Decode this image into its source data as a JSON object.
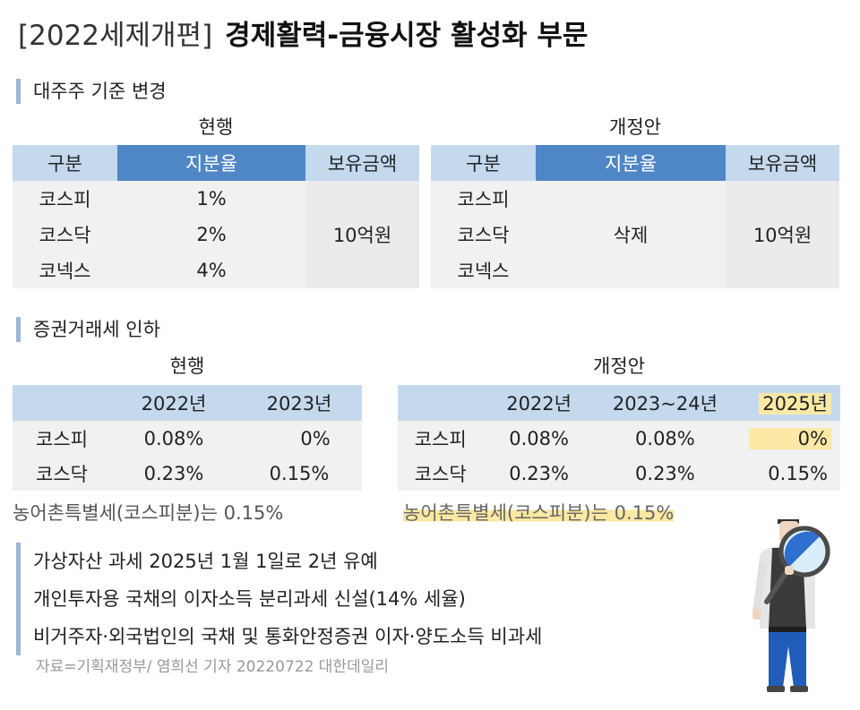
{
  "title": {
    "prefix": "[2022세제개편]",
    "main": "경제활력-금융시장 활성화 부문"
  },
  "section1": {
    "heading": "대주주 기준 변경",
    "current": {
      "caption": "현행",
      "headers": [
        "구분",
        "지분율",
        "보유금액"
      ],
      "rows": [
        {
          "name": "코스피",
          "ratio": "1%"
        },
        {
          "name": "코스닥",
          "ratio": "2%"
        },
        {
          "name": "코넥스",
          "ratio": "4%"
        }
      ],
      "amount": "10억원"
    },
    "proposal": {
      "caption": "개정안",
      "headers": [
        "구분",
        "지분율",
        "보유금액"
      ],
      "rows": [
        {
          "name": "코스피"
        },
        {
          "name": "코스닥"
        },
        {
          "name": "코넥스"
        }
      ],
      "ratio": "삭제",
      "amount": "10억원"
    }
  },
  "section2": {
    "heading": "증권거래세 인하",
    "current": {
      "caption": "현행",
      "headers": [
        "",
        "2022년",
        "2023년"
      ],
      "rows": [
        {
          "name": "코스피",
          "y2022": "0.08%",
          "y2023": "0%"
        },
        {
          "name": "코스닥",
          "y2022": "0.23%",
          "y2023": "0.15%"
        }
      ],
      "note": "농어촌특별세(코스피분)는 0.15%"
    },
    "proposal": {
      "caption": "개정안",
      "headers": [
        "",
        "2022년",
        "2023~24년",
        "2025년"
      ],
      "rows": [
        {
          "name": "코스피",
          "y2022": "0.08%",
          "y2324": "0.08%",
          "y2025": "0%"
        },
        {
          "name": "코스닥",
          "y2022": "0.23%",
          "y2324": "0.23%",
          "y2025": "0.15%"
        }
      ],
      "note": "농어촌특별세(코스피분)는 0.15%"
    }
  },
  "section3": {
    "items": [
      "가상자산 과세 2025년 1월 1일로 2년 유예",
      "개인투자용 국채의 이자소득 분리과세 신설(14% 세율)",
      "비거주자·외국법인의 국채 및 통화안정증권 이자·양도소득 비과세"
    ]
  },
  "source": "자료=기획재정부/ 염희선 기자 20220722 대한데일리",
  "colors": {
    "header_light": "#c5d9ee",
    "header_dark": "#4f86c6",
    "body_bg": "#f1f1f1",
    "highlight": "#fde9a6",
    "accent_bar": "#9fb6d4"
  }
}
